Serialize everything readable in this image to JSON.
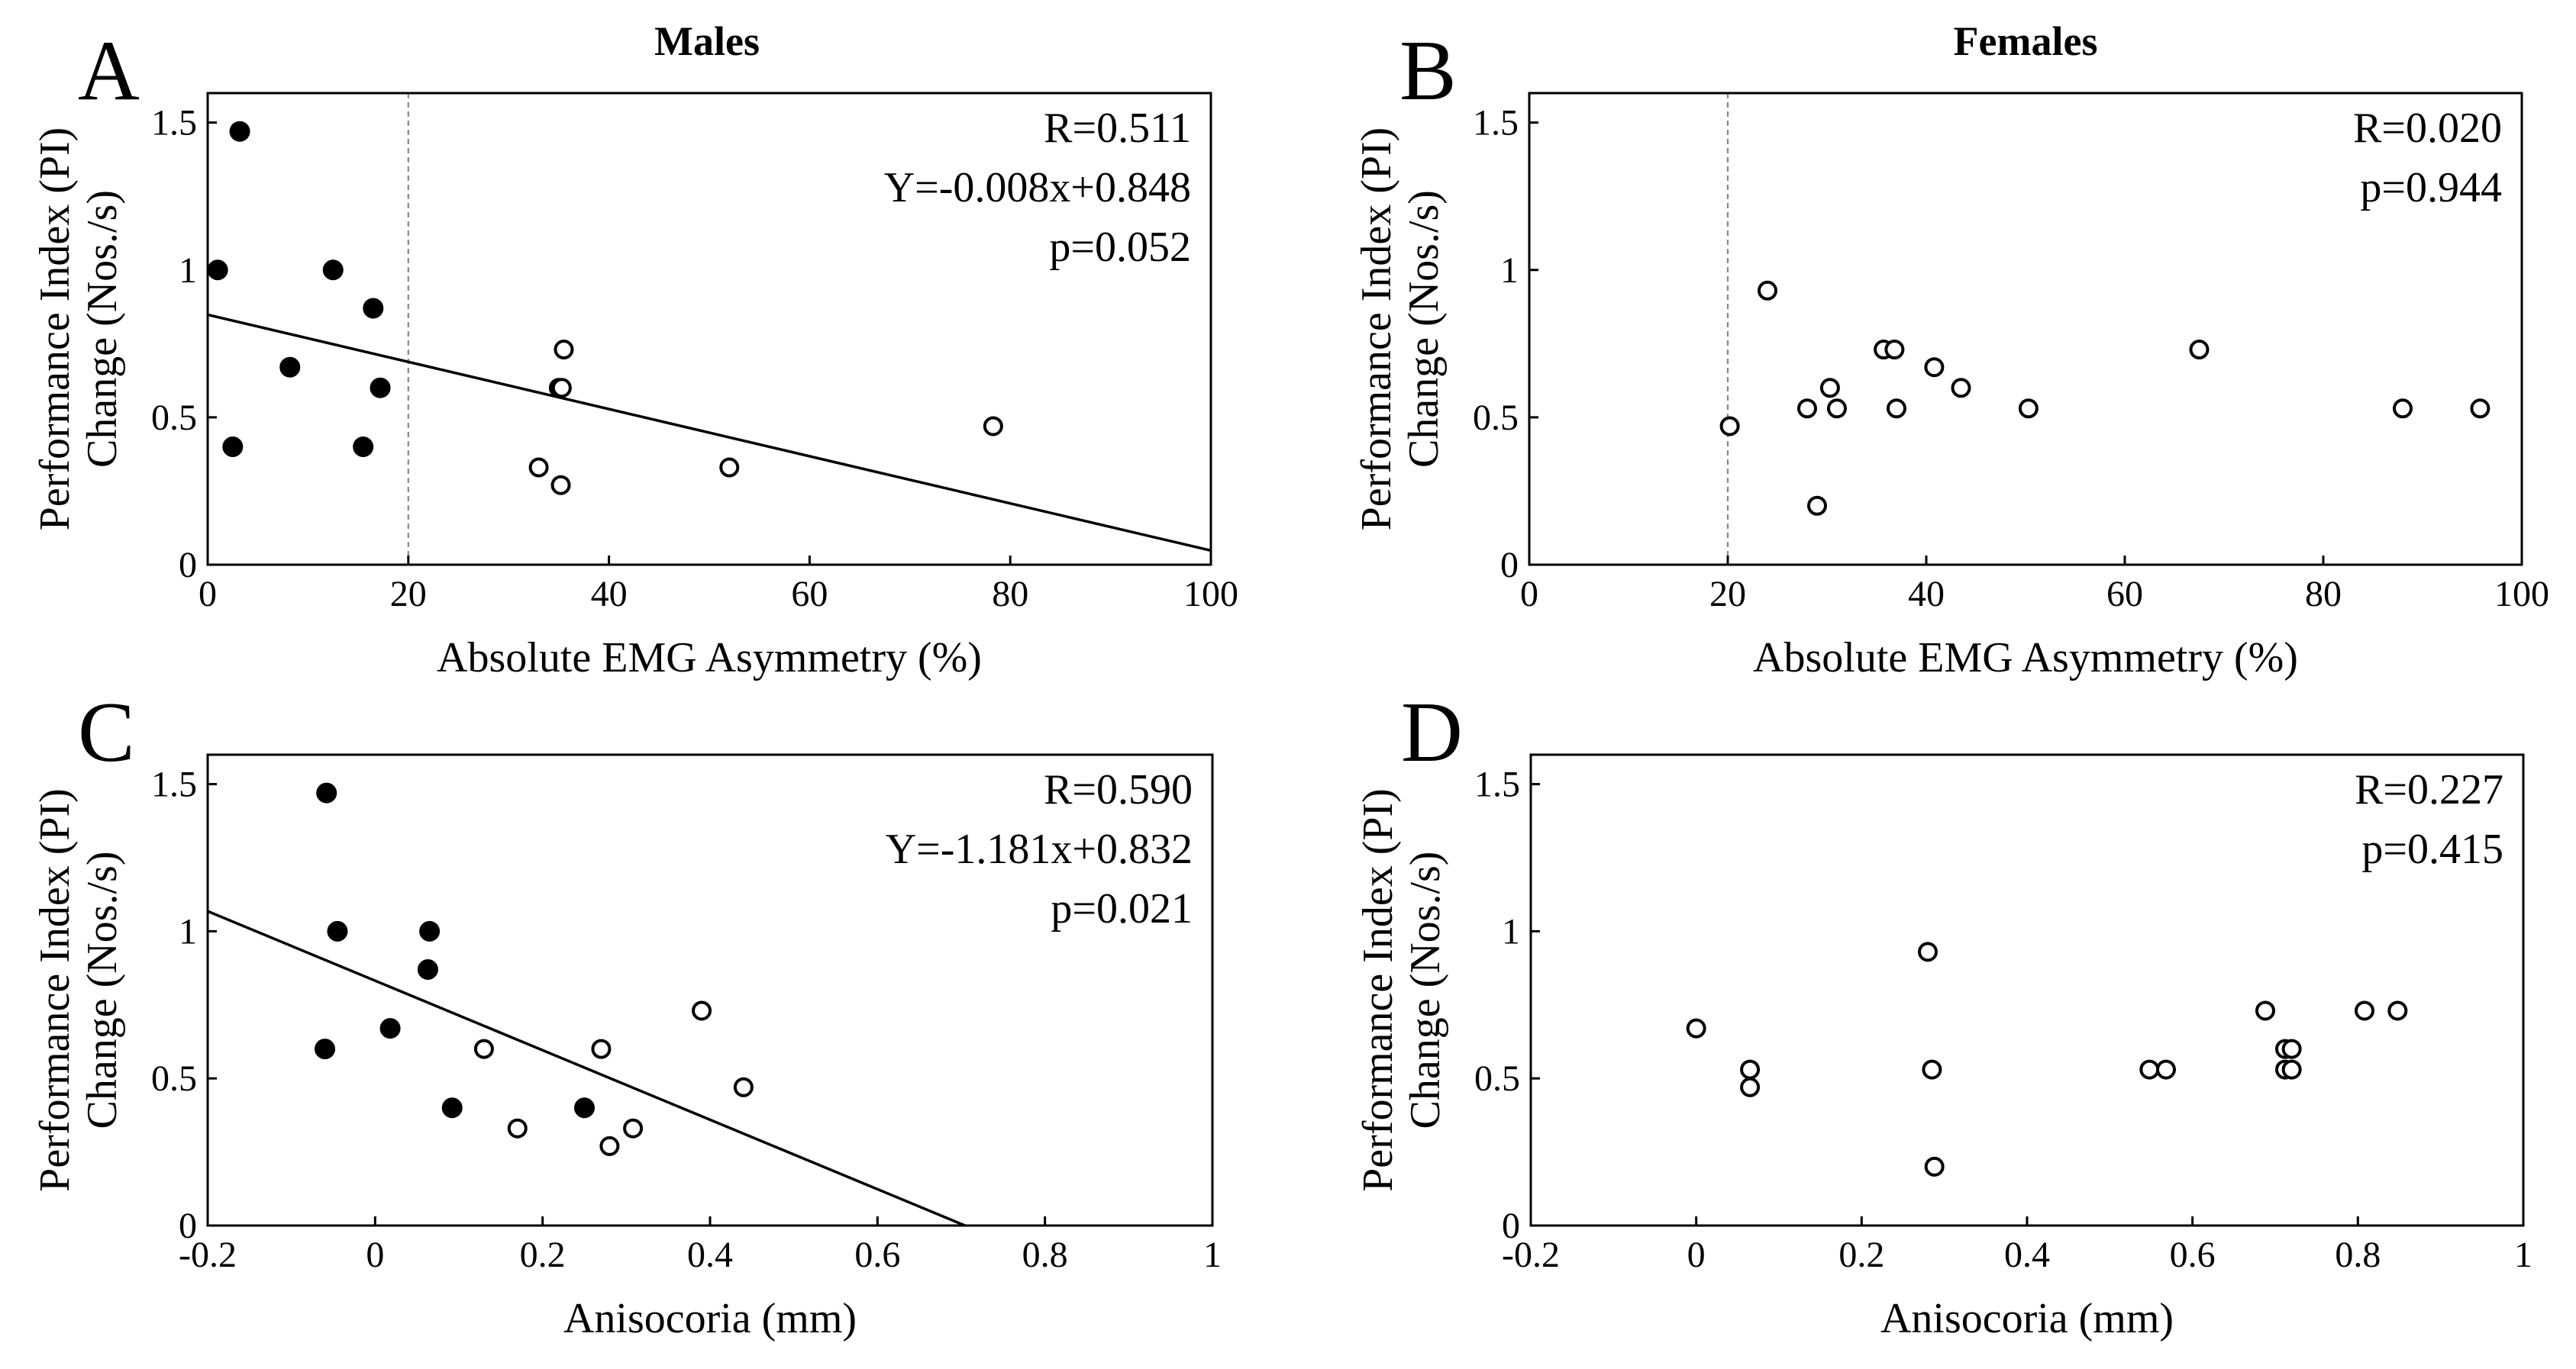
{
  "figure": {
    "col_titles": [
      "Males",
      "Females"
    ]
  },
  "chart_data": [
    {
      "type": "scatter",
      "panel": "A",
      "xlabel": "Absolute EMG Asymmetry (%)",
      "ylabel": [
        "Performance Index (PI)",
        "Change (Nos./s)"
      ],
      "xlim": [
        0,
        100
      ],
      "ylim": [
        0,
        1.6
      ],
      "xticks": [
        0,
        20,
        40,
        60,
        80,
        100
      ],
      "xtick_labels": [
        "0",
        "20",
        "40",
        "60",
        "80",
        "100"
      ],
      "yticks": [
        0,
        0.5,
        1,
        1.5
      ],
      "ytick_labels": [
        "0",
        "0.5",
        "1",
        "1.5"
      ],
      "ref_x": 20,
      "annotations": [
        "R=0.511",
        "Y=-0.008x+0.848",
        "p=0.052"
      ],
      "fit": {
        "slope": -0.008,
        "intercept": 0.848
      },
      "series": [
        {
          "name": "filled",
          "filled": true,
          "points": [
            [
              3.2,
              1.47
            ],
            [
              1.0,
              1.0
            ],
            [
              12.5,
              1.0
            ],
            [
              16.5,
              0.87
            ],
            [
              8.2,
              0.67
            ],
            [
              17.2,
              0.6
            ],
            [
              2.5,
              0.4
            ],
            [
              15.5,
              0.4
            ]
          ]
        },
        {
          "name": "open",
          "filled": false,
          "points": [
            [
              35.5,
              0.73
            ],
            [
              35.0,
              0.6
            ],
            [
              35.3,
              0.6
            ],
            [
              33.0,
              0.33
            ],
            [
              35.2,
              0.27
            ],
            [
              52.0,
              0.33
            ],
            [
              78.3,
              0.47
            ]
          ]
        }
      ]
    },
    {
      "type": "scatter",
      "panel": "B",
      "xlabel": "Absolute EMG Asymmetry (%)",
      "ylabel": [
        "Performance Index (PI)",
        "Change (Nos./s)"
      ],
      "xlim": [
        0,
        100
      ],
      "ylim": [
        0,
        1.6
      ],
      "xticks": [
        0,
        20,
        40,
        60,
        80,
        100
      ],
      "xtick_labels": [
        "0",
        "20",
        "40",
        "60",
        "80",
        "100"
      ],
      "yticks": [
        0,
        0.5,
        1,
        1.5
      ],
      "ytick_labels": [
        "0",
        "0.5",
        "1",
        "1.5"
      ],
      "ref_x": 20,
      "annotations": [
        "R=0.020",
        "p=0.944"
      ],
      "series": [
        {
          "name": "open",
          "filled": false,
          "points": [
            [
              20.2,
              0.47
            ],
            [
              24.0,
              0.93
            ],
            [
              28.0,
              0.53
            ],
            [
              29.0,
              0.2
            ],
            [
              30.3,
              0.6
            ],
            [
              31.0,
              0.53
            ],
            [
              35.7,
              0.73
            ],
            [
              36.8,
              0.73
            ],
            [
              37.0,
              0.53
            ],
            [
              40.8,
              0.67
            ],
            [
              43.5,
              0.6
            ],
            [
              50.3,
              0.53
            ],
            [
              67.5,
              0.73
            ],
            [
              88.0,
              0.53
            ],
            [
              95.8,
              0.53
            ]
          ]
        }
      ]
    },
    {
      "type": "scatter",
      "panel": "C",
      "xlabel": "Anisocoria (mm)",
      "ylabel": [
        "Performance Index (PI)",
        "Change (Nos./s)"
      ],
      "xlim": [
        -0.2,
        1
      ],
      "ylim": [
        0,
        1.6
      ],
      "xticks": [
        -0.2,
        0,
        0.2,
        0.4,
        0.6,
        0.8,
        1
      ],
      "xtick_labels": [
        "-0.2",
        "0",
        "0.2",
        "0.4",
        "0.6",
        "0.8",
        "1"
      ],
      "yticks": [
        0,
        0.5,
        1,
        1.5
      ],
      "ytick_labels": [
        "0",
        "0.5",
        "1",
        "1.5"
      ],
      "annotations": [
        "R=0.590",
        "Y=-1.181x+0.832",
        "p=0.021"
      ],
      "fit": {
        "slope": -1.181,
        "intercept": 0.832
      },
      "series": [
        {
          "name": "filled",
          "filled": true,
          "points": [
            [
              -0.058,
              1.47
            ],
            [
              -0.045,
              1.0
            ],
            [
              0.065,
              1.0
            ],
            [
              0.063,
              0.87
            ],
            [
              0.018,
              0.67
            ],
            [
              -0.06,
              0.6
            ],
            [
              0.092,
              0.4
            ],
            [
              0.25,
              0.4
            ]
          ]
        },
        {
          "name": "open",
          "filled": false,
          "points": [
            [
              0.39,
              0.73
            ],
            [
              0.13,
              0.6
            ],
            [
              0.27,
              0.6
            ],
            [
              0.44,
              0.47
            ],
            [
              0.17,
              0.33
            ],
            [
              0.308,
              0.33
            ],
            [
              0.28,
              0.27
            ]
          ]
        }
      ]
    },
    {
      "type": "scatter",
      "panel": "D",
      "xlabel": "Anisocoria (mm)",
      "ylabel": [
        "Performance Index (PI)",
        "Change (Nos./s)"
      ],
      "xlim": [
        -0.2,
        1
      ],
      "ylim": [
        0,
        1.6
      ],
      "xticks": [
        -0.2,
        0,
        0.2,
        0.4,
        0.6,
        0.8,
        1
      ],
      "xtick_labels": [
        "-0.2",
        "0",
        "0.2",
        "0.4",
        "0.6",
        "0.8",
        "1"
      ],
      "yticks": [
        0,
        0.5,
        1,
        1.5
      ],
      "ytick_labels": [
        "0",
        "0.5",
        "1",
        "1.5"
      ],
      "annotations": [
        "R=0.227",
        "p=0.415"
      ],
      "series": [
        {
          "name": "open",
          "filled": false,
          "points": [
            [
              0.0,
              0.67
            ],
            [
              0.065,
              0.53
            ],
            [
              0.065,
              0.47
            ],
            [
              0.28,
              0.93
            ],
            [
              0.285,
              0.53
            ],
            [
              0.288,
              0.2
            ],
            [
              0.548,
              0.53
            ],
            [
              0.568,
              0.53
            ],
            [
              0.688,
              0.73
            ],
            [
              0.712,
              0.6
            ],
            [
              0.72,
              0.6
            ],
            [
              0.712,
              0.53
            ],
            [
              0.72,
              0.53
            ],
            [
              0.808,
              0.73
            ],
            [
              0.848,
              0.73
            ]
          ]
        }
      ]
    }
  ]
}
